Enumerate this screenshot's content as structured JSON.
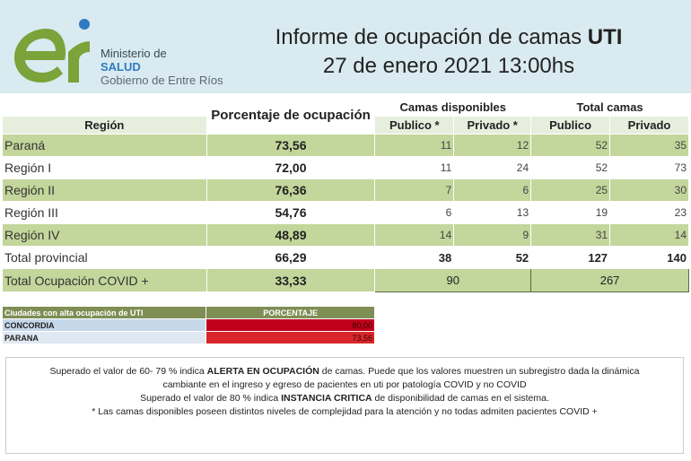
{
  "header": {
    "ministry_line1": "Ministerio de",
    "ministry_line2": "SALUD",
    "ministry_line3": "Gobierno de Entre Ríos",
    "title_prefix": "Informe de ocupación de camas",
    "title_bold": "UTI",
    "subtitle": "27 de enero 2021 13:00hs"
  },
  "table": {
    "headers": {
      "region": "Región",
      "pct": "Porcentaje de ocupación",
      "camas_disponibles": "Camas disponibles",
      "total_camas": "Total camas",
      "publico_star": "Publico *",
      "privado_star": "Privado *",
      "publico": "Publico",
      "privado": "Privado"
    },
    "rows": [
      {
        "region": "Paraná",
        "pct": "73,56",
        "disp_pub": "11",
        "disp_priv": "12",
        "tot_pub": "52",
        "tot_priv": "35"
      },
      {
        "region": "Región I",
        "pct": "72,00",
        "disp_pub": "11",
        "disp_priv": "24",
        "tot_pub": "52",
        "tot_priv": "73"
      },
      {
        "region": "Región II",
        "pct": "76,36",
        "disp_pub": "7",
        "disp_priv": "6",
        "tot_pub": "25",
        "tot_priv": "30"
      },
      {
        "region": "Región III",
        "pct": "54,76",
        "disp_pub": "6",
        "disp_priv": "13",
        "tot_pub": "19",
        "tot_priv": "23"
      },
      {
        "region": "Región IV",
        "pct": "48,89",
        "disp_pub": "14",
        "disp_priv": "9",
        "tot_pub": "31",
        "tot_priv": "14"
      },
      {
        "region": "Total provincial",
        "pct": "66,29",
        "disp_pub": "38",
        "disp_priv": "52",
        "tot_pub": "127",
        "tot_priv": "140"
      }
    ],
    "covid": {
      "label": "Total Ocupación COVID +",
      "pct": "33,33",
      "disponibles": "90",
      "total": "267"
    }
  },
  "cities": {
    "header_label": "Ciudades con alta ocupación de UTI",
    "header_pct": "PORCENTAJE",
    "rows": [
      {
        "city": "CONCORDIA",
        "pct": "80,00"
      },
      {
        "city": "PARANA",
        "pct": "73,56"
      }
    ]
  },
  "notes": {
    "line1_a": "Superado el valor de 60- 79 %  indica ",
    "line1_b": "ALERTA EN OCUPACIÓN",
    "line1_c": " de camas. Puede que los valores muestren un subregistro dada la dinámica",
    "line2": "cambiante en el ingreso y egreso de pacientes en uti por patología COVID y no COVID",
    "line3_a": "Superado el valor de 80 % indica ",
    "line3_b": "INSTANCIA CRITICA",
    "line3_c": " de disponibilidad de camas en el sistema.",
    "line4": "* Las camas disponibles poseen distintos niveles de complejidad para la atención y no todas admiten pacientes COVID +"
  },
  "colors": {
    "header_bg": "#d9eaf0",
    "row_green": "#c3d69b",
    "logo_green": "#7aa33a",
    "logo_blue": "#2e7bbf",
    "critical_red": "#c0001a"
  }
}
